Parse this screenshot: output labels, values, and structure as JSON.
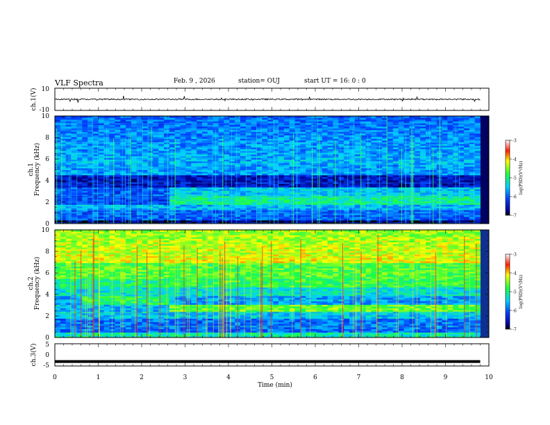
{
  "header": {
    "title": "VLF Spectra",
    "date": "Feb. 9  , 2026",
    "station": "station= OUJ",
    "start": "start  UT  =   16: 0  : 0"
  },
  "chart_data": {
    "type": "spectrogram",
    "title": "VLF Spectra",
    "xlabel": "Time  (min)",
    "xlim": [
      0,
      10
    ],
    "x_ticks": [
      "0",
      "1",
      "2",
      "3",
      "4",
      "5",
      "6",
      "7",
      "8",
      "9",
      "10"
    ],
    "data_end_min": 9.8,
    "panels": [
      {
        "kind": "waveform",
        "ylabel": "ch.1(V)",
        "ylim": [
          -10,
          10
        ],
        "y_ticks": [
          "10",
          "-10"
        ],
        "baseline": 0
      },
      {
        "kind": "spectrogram",
        "ylabel_line1": "ch.1",
        "ylabel_line2": "Frequency  (kHz)",
        "ylim": [
          0,
          10
        ],
        "y_ticks": [
          "0",
          "2",
          "4",
          "6",
          "8",
          "10"
        ],
        "colorbar": {
          "label": "log(PSD)(V²/Hz)",
          "range": [
            -7,
            -3
          ],
          "ticks": [
            "-3",
            "-4",
            "-5",
            "-6",
            "-7"
          ]
        }
      },
      {
        "kind": "spectrogram",
        "ylabel_line1": "ch.2",
        "ylabel_line2": "Frequency  (kHz)",
        "ylim": [
          0,
          10
        ],
        "y_ticks": [
          "0",
          "2",
          "4",
          "6",
          "8",
          "10"
        ],
        "colorbar": {
          "label": "log(PSD)(V²/Hz)",
          "range": [
            -7,
            -3
          ],
          "ticks": [
            "-3",
            "-4",
            "-5",
            "-6",
            "-7"
          ]
        }
      },
      {
        "kind": "waveform",
        "ylabel": "ch.3(V)",
        "ylim": [
          -5,
          5
        ],
        "y_ticks": [
          "5",
          "0",
          "-5"
        ],
        "baseline": -3
      }
    ]
  }
}
